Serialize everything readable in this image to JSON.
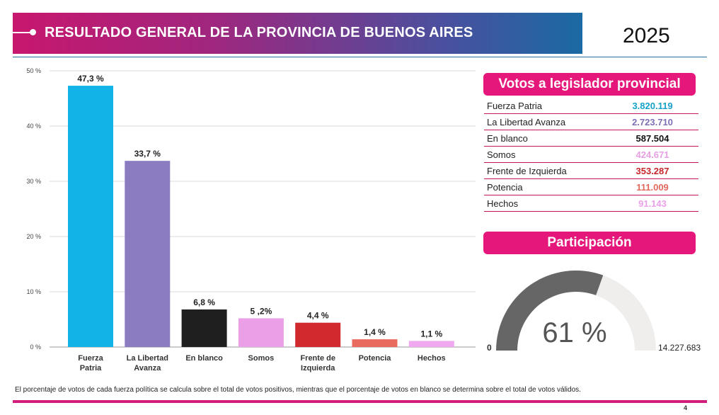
{
  "header": {
    "title": "RESULTADO GENERAL DE LA PROVINCIA DE BUENOS AIRES",
    "year": "2025"
  },
  "chart_data": {
    "type": "bar",
    "categories": [
      [
        "Fuerza",
        "Patria"
      ],
      [
        "La Libertad",
        "Avanza"
      ],
      [
        "En blanco"
      ],
      [
        "Somos"
      ],
      [
        "Frente de",
        "Izquierda"
      ],
      [
        "Potencia"
      ],
      [
        "Hechos"
      ]
    ],
    "values": [
      47.3,
      33.7,
      6.8,
      5.2,
      4.4,
      1.4,
      1.1
    ],
    "value_labels": [
      "47,3 %",
      "33,7 %",
      "6,8 %",
      "5 ,2%",
      "4,4 %",
      "1,4 %",
      "1,1 %"
    ],
    "colors": [
      "#12b4e8",
      "#8b7cc1",
      "#1f1f1f",
      "#eb9fe6",
      "#d1292e",
      "#e96b5f",
      "#f0a8ef"
    ],
    "yticks": [
      0,
      10,
      20,
      30,
      40,
      50
    ],
    "ytick_labels": [
      "0 %",
      "10 %",
      "20 %",
      "30 %",
      "40 %",
      "50 %"
    ],
    "ylim": [
      0,
      50
    ],
    "grid": true
  },
  "votes_panel": {
    "title": "Votos a legislador provincial",
    "rows": [
      {
        "name": "Fuerza Patria",
        "value": "3.820.119",
        "color": "#17a2c8"
      },
      {
        "name": "La Libertad Avanza",
        "value": "2.723.710",
        "color": "#7e6fb4"
      },
      {
        "name": "En blanco",
        "value": "587.504",
        "color": "#111111"
      },
      {
        "name": "Somos",
        "value": "424.671",
        "color": "#e79ee2"
      },
      {
        "name": "Frente de Izquierda",
        "value": "353.287",
        "color": "#c7272c"
      },
      {
        "name": "Potencia",
        "value": "111.009",
        "color": "#e2685c"
      },
      {
        "name": "Hechos",
        "value": "91.143",
        "color": "#ec9fea"
      }
    ]
  },
  "participation": {
    "title": "Participación",
    "percent_label": "61 %",
    "fraction": 0.61,
    "min_label": "0",
    "max_label": "14.227.683",
    "fill_color": "#666666",
    "track_color": "#efeeec"
  },
  "footnote": "El porcentaje de votos de cada fuerza política se calcula sobre el total de votos positivos, mientras que el porcentaje de votos en blanco se determina sobre el total de votos válidos.",
  "page_number": "4"
}
